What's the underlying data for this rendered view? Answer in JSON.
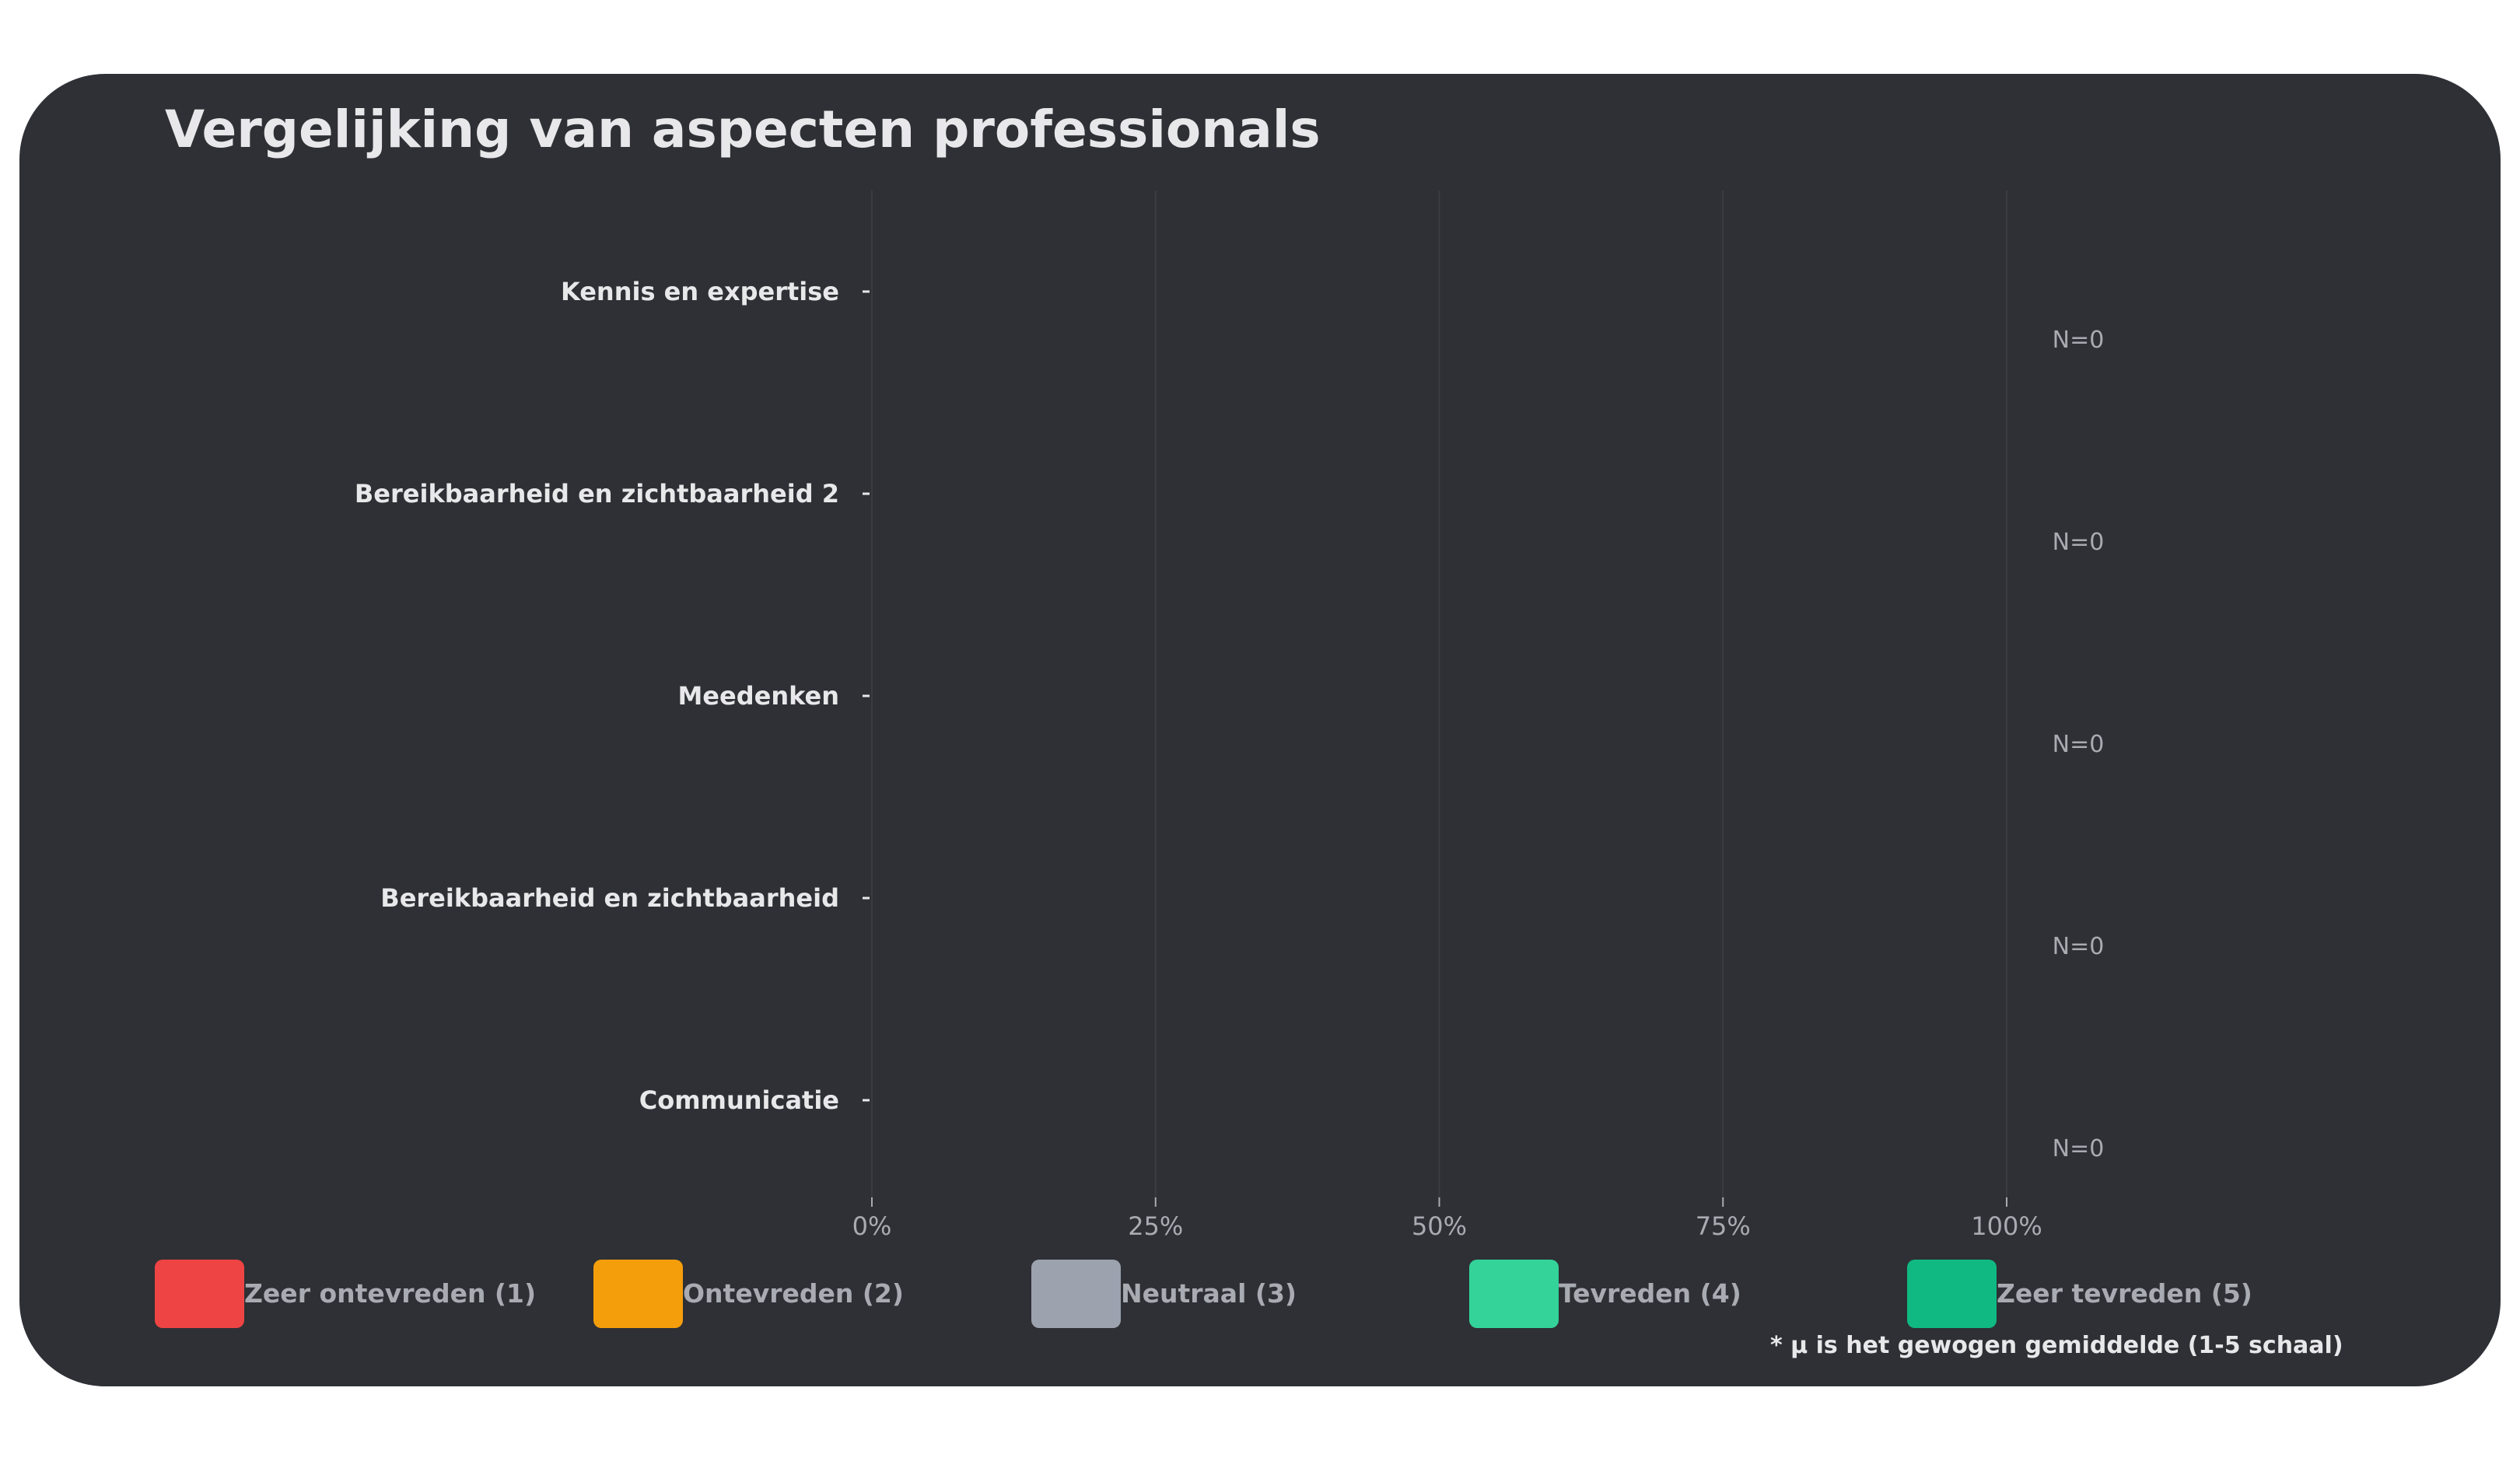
{
  "chart_data": {
    "type": "bar",
    "title": "Vergelijking van aspecten professionals",
    "stacked": true,
    "orientation": "horizontal",
    "categories": [
      "Kennis en expertise",
      "Bereikbaarheid en zichtbaarheid 2",
      "Meedenken",
      "Bereikbaarheid en zichtbaarheid",
      "Communicatie"
    ],
    "series": [
      {
        "name": "Zeer ontevreden (1)",
        "color": "#ef4444",
        "values": [
          0,
          0,
          0,
          0,
          0
        ]
      },
      {
        "name": "Ontevreden (2)",
        "color": "#f59e0b",
        "values": [
          0,
          0,
          0,
          0,
          0
        ]
      },
      {
        "name": "Neutraal (3)",
        "color": "#9ca3af",
        "values": [
          0,
          0,
          0,
          0,
          0
        ]
      },
      {
        "name": "Tevreden (4)",
        "color": "#34d399",
        "values": [
          0,
          0,
          0,
          0,
          0
        ]
      },
      {
        "name": "Zeer tevreden (5)",
        "color": "#10b981",
        "values": [
          0,
          0,
          0,
          0,
          0
        ]
      }
    ],
    "n_labels": [
      "N=0",
      "N=0",
      "N=0",
      "N=0",
      "N=0"
    ],
    "xticks": [
      "0%",
      "25%",
      "50%",
      "75%",
      "100%"
    ],
    "xlim": [
      0,
      100
    ],
    "grid": true,
    "legend_position": "bottom",
    "footnote": "* μ is het gewogen gemiddelde (1-5 schaal)"
  },
  "colors": {
    "background": "#2e3035",
    "text": "#e8e8ea",
    "muted_text": "#a8abb2",
    "grid": "#3a3c41"
  }
}
